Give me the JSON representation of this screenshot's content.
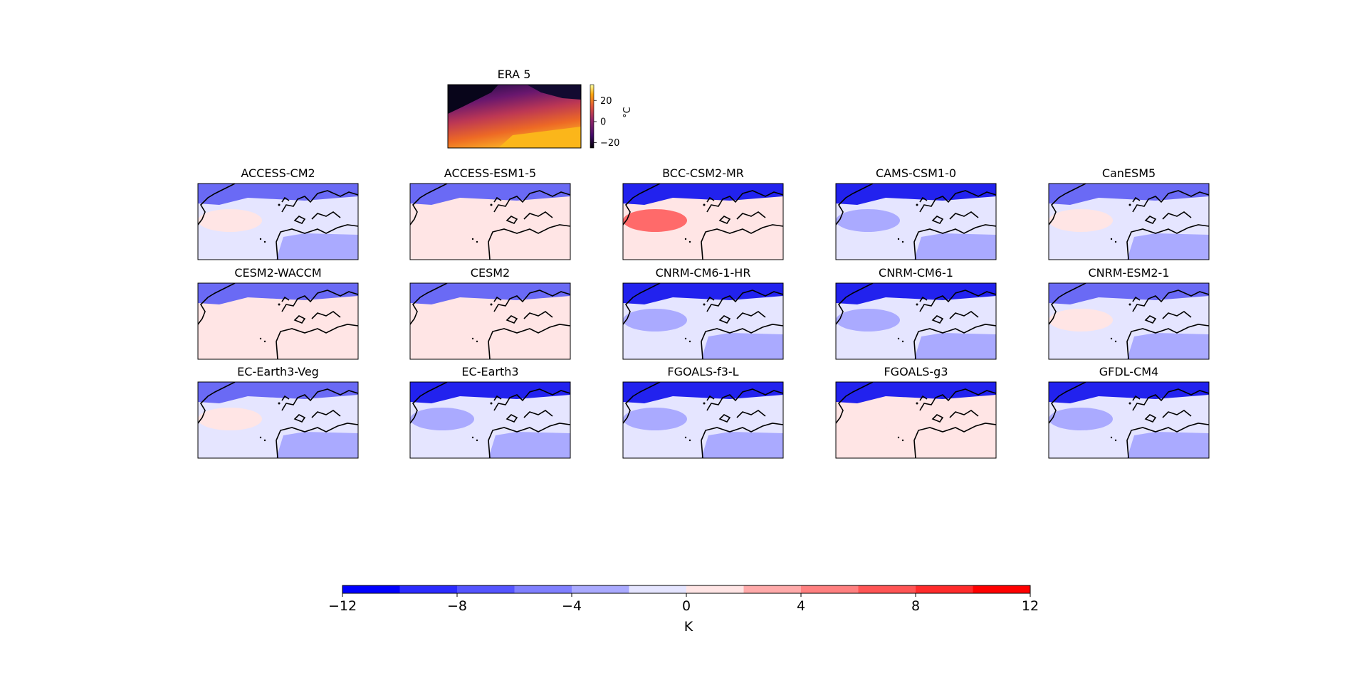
{
  "era5": {
    "title": "ERA 5",
    "colorbar": {
      "ticks": [
        "20",
        "0",
        "−20"
      ],
      "tick_values": [
        20,
        0,
        -20
      ],
      "range": [
        -25,
        35
      ],
      "unit_label": "°C",
      "colormap": "inferno"
    }
  },
  "panels": [
    {
      "title": "ACCESS-CM2",
      "bias": "mixed"
    },
    {
      "title": "ACCESS-ESM1-5",
      "bias": "warm"
    },
    {
      "title": "BCC-CSM2-MR",
      "bias": "warm-atlantic"
    },
    {
      "title": "CAMS-CSM1-0",
      "bias": "cold"
    },
    {
      "title": "CanESM5",
      "bias": "mixed"
    },
    {
      "title": "CESM2-WACCM",
      "bias": "warm"
    },
    {
      "title": "CESM2",
      "bias": "warm"
    },
    {
      "title": "CNRM-CM6-1-HR",
      "bias": "cold"
    },
    {
      "title": "CNRM-CM6-1",
      "bias": "cold"
    },
    {
      "title": "CNRM-ESM2-1",
      "bias": "mixed"
    },
    {
      "title": "EC-Earth3-Veg",
      "bias": "mixed"
    },
    {
      "title": "EC-Earth3",
      "bias": "cold"
    },
    {
      "title": "FGOALS-f3-L",
      "bias": "cold"
    },
    {
      "title": "FGOALS-g3",
      "bias": "cold-north"
    },
    {
      "title": "GFDL-CM4",
      "bias": "cold"
    }
  ],
  "colorbar": {
    "ticks": [
      "−12",
      "−8",
      "−4",
      "0",
      "4",
      "8",
      "12"
    ],
    "tick_values": [
      -12,
      -8,
      -4,
      0,
      4,
      8,
      12
    ],
    "levels": [
      -12,
      -10,
      -8,
      -6,
      -4,
      -2,
      0,
      2,
      4,
      6,
      8,
      10,
      12
    ],
    "colors": [
      "#0000ff",
      "#2b2bff",
      "#5555ff",
      "#8080ff",
      "#aaaaff",
      "#e5e5ff",
      "#ffe5e5",
      "#ffaaaa",
      "#ff8080",
      "#ff5555",
      "#ff2b2b",
      "#ff0000"
    ],
    "label": "K"
  }
}
